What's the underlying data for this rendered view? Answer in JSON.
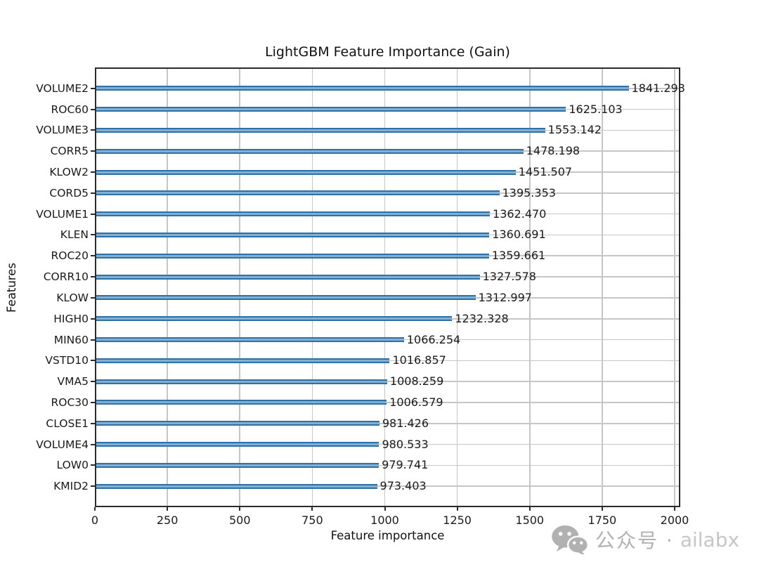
{
  "chart_data": {
    "type": "bar",
    "orientation": "horizontal",
    "title": "LightGBM Feature Importance (Gain)",
    "xlabel": "Feature importance",
    "ylabel": "Features",
    "categories": [
      "VOLUME2",
      "ROC60",
      "VOLUME3",
      "CORR5",
      "KLOW2",
      "CORD5",
      "VOLUME1",
      "KLEN",
      "ROC20",
      "CORR10",
      "KLOW",
      "HIGH0",
      "MIN60",
      "VSTD10",
      "VMA5",
      "ROC30",
      "CLOSE1",
      "VOLUME4",
      "LOW0",
      "KMID2"
    ],
    "values": [
      1841.293,
      1625.103,
      1553.142,
      1478.198,
      1451.507,
      1395.353,
      1362.47,
      1360.691,
      1359.661,
      1327.578,
      1312.997,
      1232.328,
      1066.254,
      1016.857,
      1008.259,
      1006.579,
      981.426,
      980.533,
      979.741,
      973.403
    ],
    "value_labels": [
      "1841.293",
      "1625.103",
      "1553.142",
      "1478.198",
      "1451.507",
      "1395.353",
      "1362.470",
      "1360.691",
      "1359.661",
      "1327.578",
      "1312.997",
      "1232.328",
      "1066.254",
      "1016.857",
      "1008.259",
      "1006.579",
      "981.426",
      "980.533",
      "979.741",
      "973.403"
    ],
    "x_ticks": [
      "0",
      "250",
      "500",
      "750",
      "1000",
      "1250",
      "1500",
      "1750",
      "2000"
    ],
    "xlim": [
      0,
      2020
    ],
    "grid": true,
    "legend": "none",
    "bar_fill_color": "#89b4d7",
    "bar_edge_color": "#2e72a8",
    "grid_color": "#c6c6c6"
  },
  "watermark": {
    "icon": "wechat-icon",
    "text_cn": "公众号 ·",
    "text_en": "ailabx",
    "color": "#b1b1b1"
  }
}
